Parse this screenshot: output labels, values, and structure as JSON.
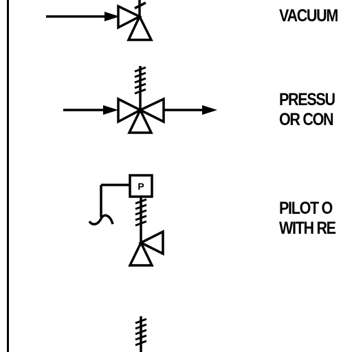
{
  "colors": {
    "ink": "#000000",
    "paper": "#ffffff"
  },
  "symbols": [
    {
      "name": "vacuum-relief-valve",
      "icon": "three-way-valve-with-spring-icon",
      "label_lines": [
        "VACUUM"
      ]
    },
    {
      "name": "pressure-valve",
      "icon": "inline-valve-with-spring-and-flow-arrows-icon",
      "label_lines": [
        "PRESSU",
        "OR CON"
      ]
    },
    {
      "name": "pilot-operated-valve",
      "icon": "pilot-operated-valve-icon",
      "pilot_letter": "P",
      "label_lines": [
        "PILOT O",
        "WITH RE"
      ]
    },
    {
      "name": "spring-valve-partial",
      "icon": "spring-icon",
      "label_lines": []
    }
  ]
}
